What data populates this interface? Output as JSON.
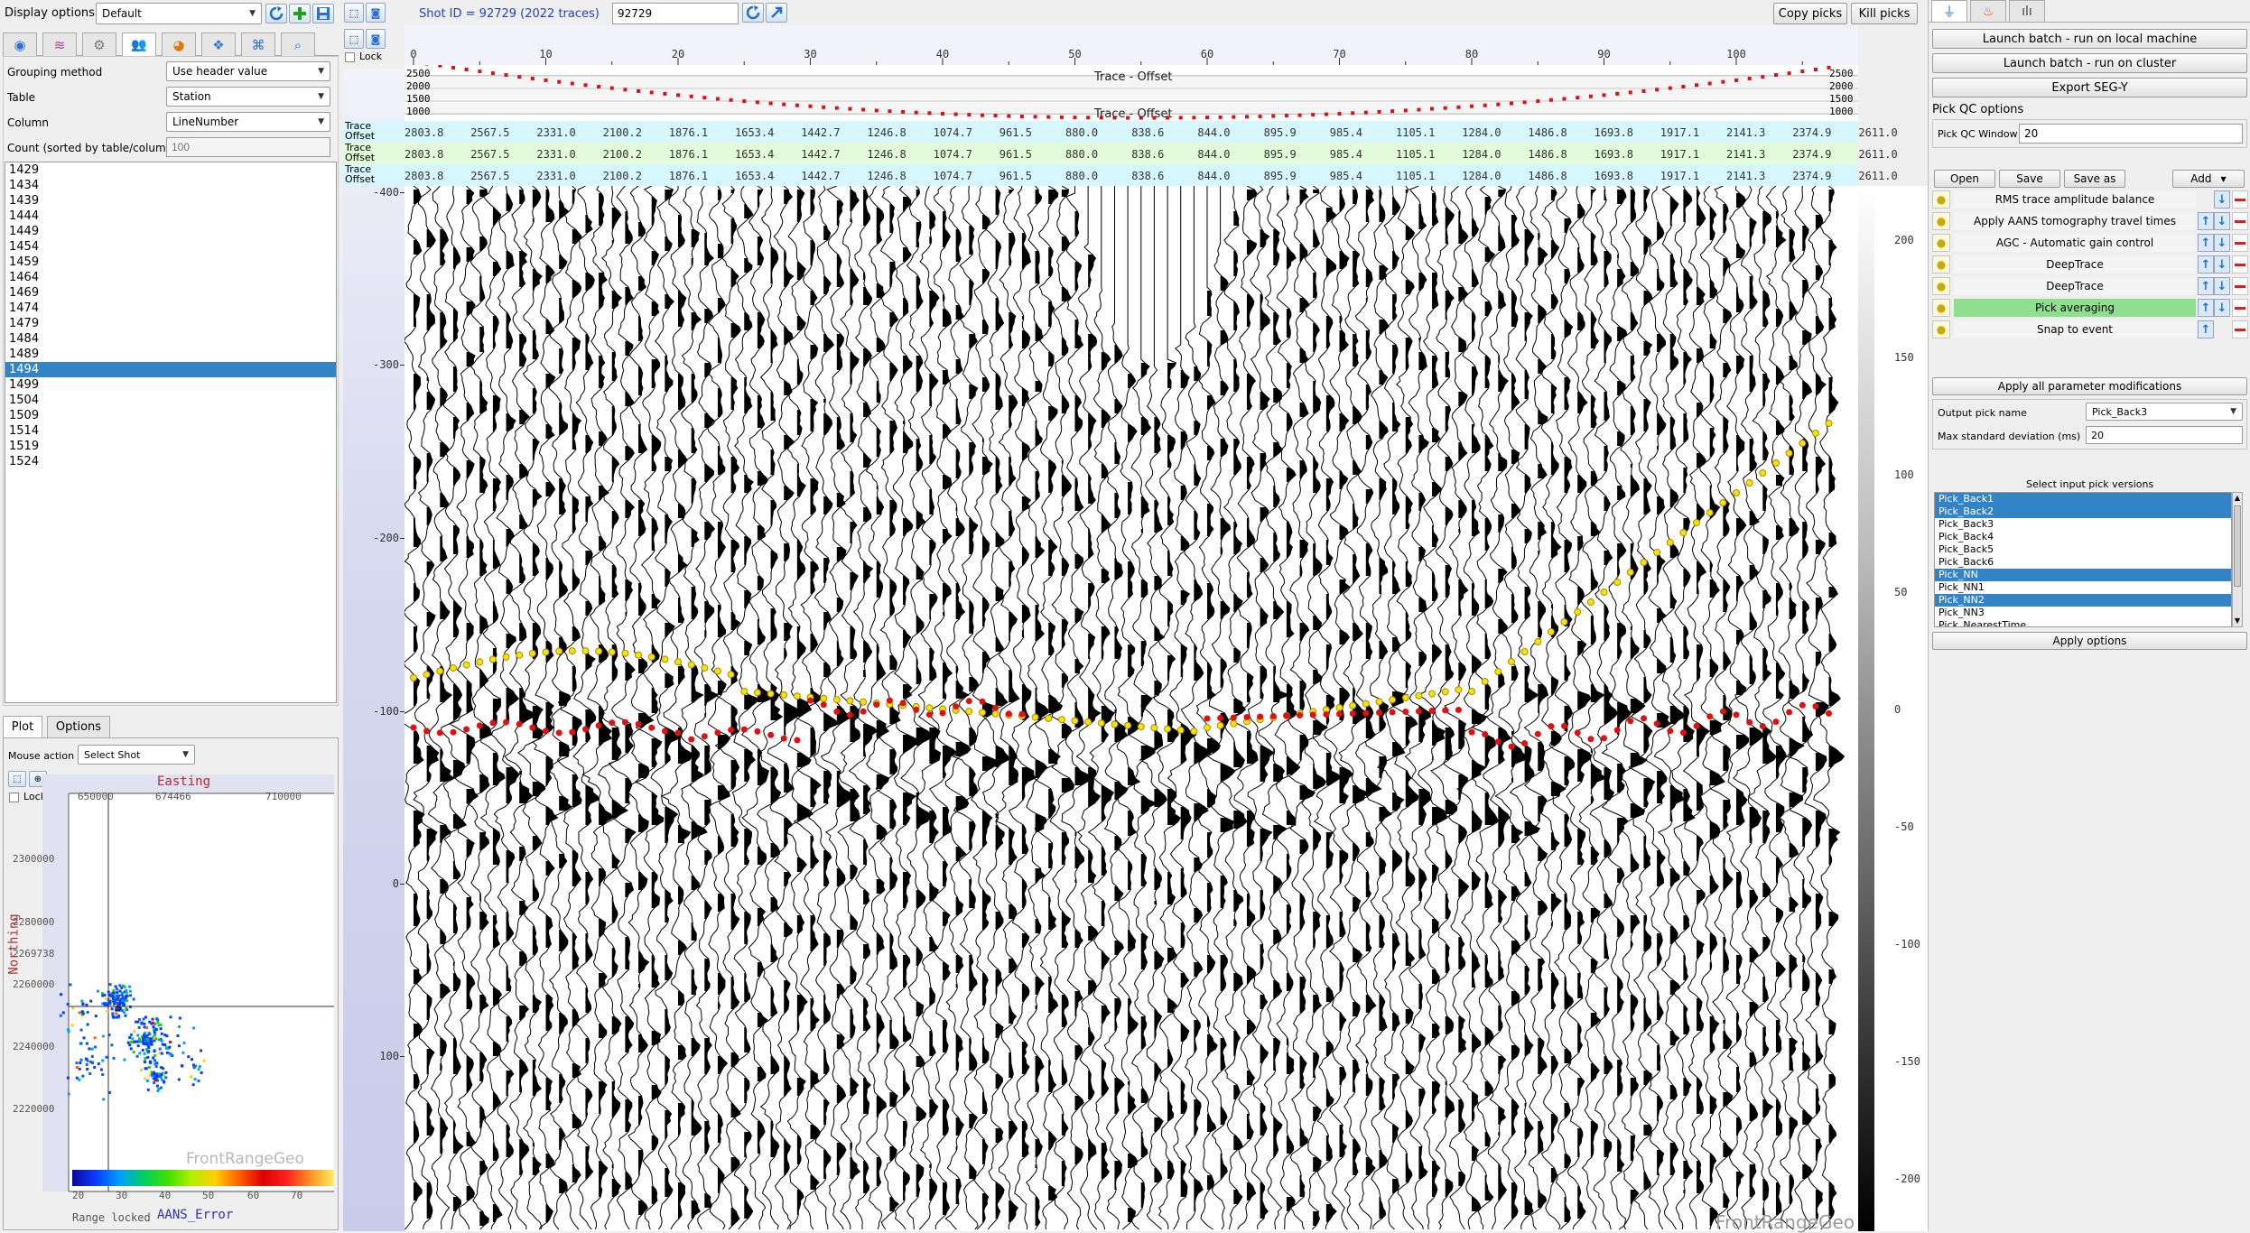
{
  "left_panel": {
    "display_options_label": "Display options",
    "display_options_value": "Default",
    "grouping_method_label": "Grouping method",
    "grouping_method_value": "Use header value",
    "table_label": "Table",
    "table_value": "Station",
    "column_label": "Column",
    "column_value": "LineNumber",
    "count_label": "Count (sorted by table/column)",
    "count_placeholder": "100",
    "values": [
      "1429",
      "1434",
      "1439",
      "1444",
      "1449",
      "1454",
      "1459",
      "1464",
      "1469",
      "1474",
      "1479",
      "1484",
      "1489",
      "1494",
      "1499",
      "1504",
      "1509",
      "1514",
      "1519",
      "1524"
    ],
    "selected_value": "1494"
  },
  "map_panel": {
    "tabs": [
      "Plot",
      "Options"
    ],
    "mouse_action_label": "Mouse action",
    "mouse_action_value": "Select Shot",
    "lock_label": "Lock",
    "x_title": "Easting",
    "x_ticks": [
      "650000",
      "674466",
      "710000"
    ],
    "y_title": "Northing",
    "y_ticks": [
      "2300000",
      "2280000",
      "2269738",
      "2260000",
      "2240000",
      "2220000"
    ],
    "watermark": "FrontRangeGeo",
    "colorbar_ticks": [
      "20",
      "30",
      "40",
      "50",
      "60",
      "70"
    ],
    "colorbar_title": "AANS_Error",
    "range_text": "Range locked"
  },
  "center": {
    "lock_label": "Lock",
    "shot_label": "Shot ID = 92729 (2022 traces)",
    "shot_input": "92729",
    "copy_picks": "Copy picks",
    "kill_picks": "Kill picks",
    "trace_ticks": [
      "0",
      "10",
      "20",
      "30",
      "40",
      "50",
      "60",
      "70",
      "80",
      "90",
      "100"
    ],
    "offset_axis_values": [
      "2500",
      "2000",
      "1500",
      "1000"
    ],
    "offset_label": "Trace - Offset",
    "header_rows": [
      {
        "l1": "Trace",
        "l2": "Offset",
        "color": "#d6f7ff"
      },
      {
        "l1": "Trace",
        "l2": "Offset",
        "color": "#e3fbd8"
      },
      {
        "l1": "Trace",
        "l2": "Offset",
        "color": "#d6f7ff"
      }
    ],
    "offset_values": [
      "2803.8",
      "2567.5",
      "2331.0",
      "2100.2",
      "1876.1",
      "1653.4",
      "1442.7",
      "1246.8",
      "1074.7",
      "961.5",
      "880.0",
      "838.6",
      "844.0",
      "895.9",
      "985.4",
      "1105.1",
      "1284.0",
      "1486.8",
      "1693.8",
      "1917.1",
      "2141.3",
      "2374.9",
      "2611.0"
    ],
    "time_ticks": [
      "-400",
      "-300",
      "-200",
      "-100",
      "0",
      "100"
    ],
    "amp_ticks": [
      "200",
      "150",
      "100",
      "50",
      "0",
      "-50",
      "-100",
      "-150",
      "-200"
    ],
    "watermark": "FrontRangeGeo"
  },
  "right_panel": {
    "launch_local": "Launch batch - run on local machine",
    "launch_cluster": "Launch batch - run on cluster",
    "export_segy": "Export SEG-Y",
    "pick_qc_title": "Pick QC options",
    "pick_qc_window_label": "Pick QC Window",
    "pick_qc_window_value": "20",
    "open": "Open",
    "save": "Save",
    "save_as": "Save as",
    "add": "Add",
    "flow": [
      {
        "name": "RMS trace amplitude balance",
        "up": false,
        "down": true,
        "hl": false
      },
      {
        "name": "Apply AANS tomography travel times",
        "up": true,
        "down": true,
        "hl": false
      },
      {
        "name": "AGC - Automatic gain control",
        "up": true,
        "down": true,
        "hl": false
      },
      {
        "name": "DeepTrace",
        "up": true,
        "down": true,
        "hl": false
      },
      {
        "name": "DeepTrace",
        "up": true,
        "down": true,
        "hl": false
      },
      {
        "name": "Pick averaging",
        "up": true,
        "down": true,
        "hl": true
      },
      {
        "name": "Snap to event",
        "up": true,
        "down": false,
        "hl": false
      }
    ],
    "apply_all": "Apply all parameter modifications",
    "output_pick_label": "Output pick name",
    "output_pick_value": "Pick_Back3",
    "max_std_label": "Max standard deviation (ms)",
    "max_std_value": "20",
    "select_input_title": "Select input pick versions",
    "pick_versions": [
      {
        "name": "Pick_Back1",
        "sel": true
      },
      {
        "name": "Pick_Back2",
        "sel": true
      },
      {
        "name": "Pick_Back3",
        "sel": false
      },
      {
        "name": "Pick_Back4",
        "sel": false
      },
      {
        "name": "Pick_Back5",
        "sel": false
      },
      {
        "name": "Pick_Back6",
        "sel": false
      },
      {
        "name": "Pick_NN",
        "sel": true
      },
      {
        "name": "Pick_NN1",
        "sel": false
      },
      {
        "name": "Pick_NN2",
        "sel": true
      },
      {
        "name": "Pick_NN3",
        "sel": false
      },
      {
        "name": "Pick_NearestTime",
        "sel": false
      }
    ],
    "apply_options": "Apply options"
  },
  "colors": {
    "selection": "#3384c7",
    "highlight": "#8ee08e",
    "accent_blue": "#1f4fd0",
    "pick_red": "#e01010",
    "pick_yellow": "#f5e600"
  }
}
